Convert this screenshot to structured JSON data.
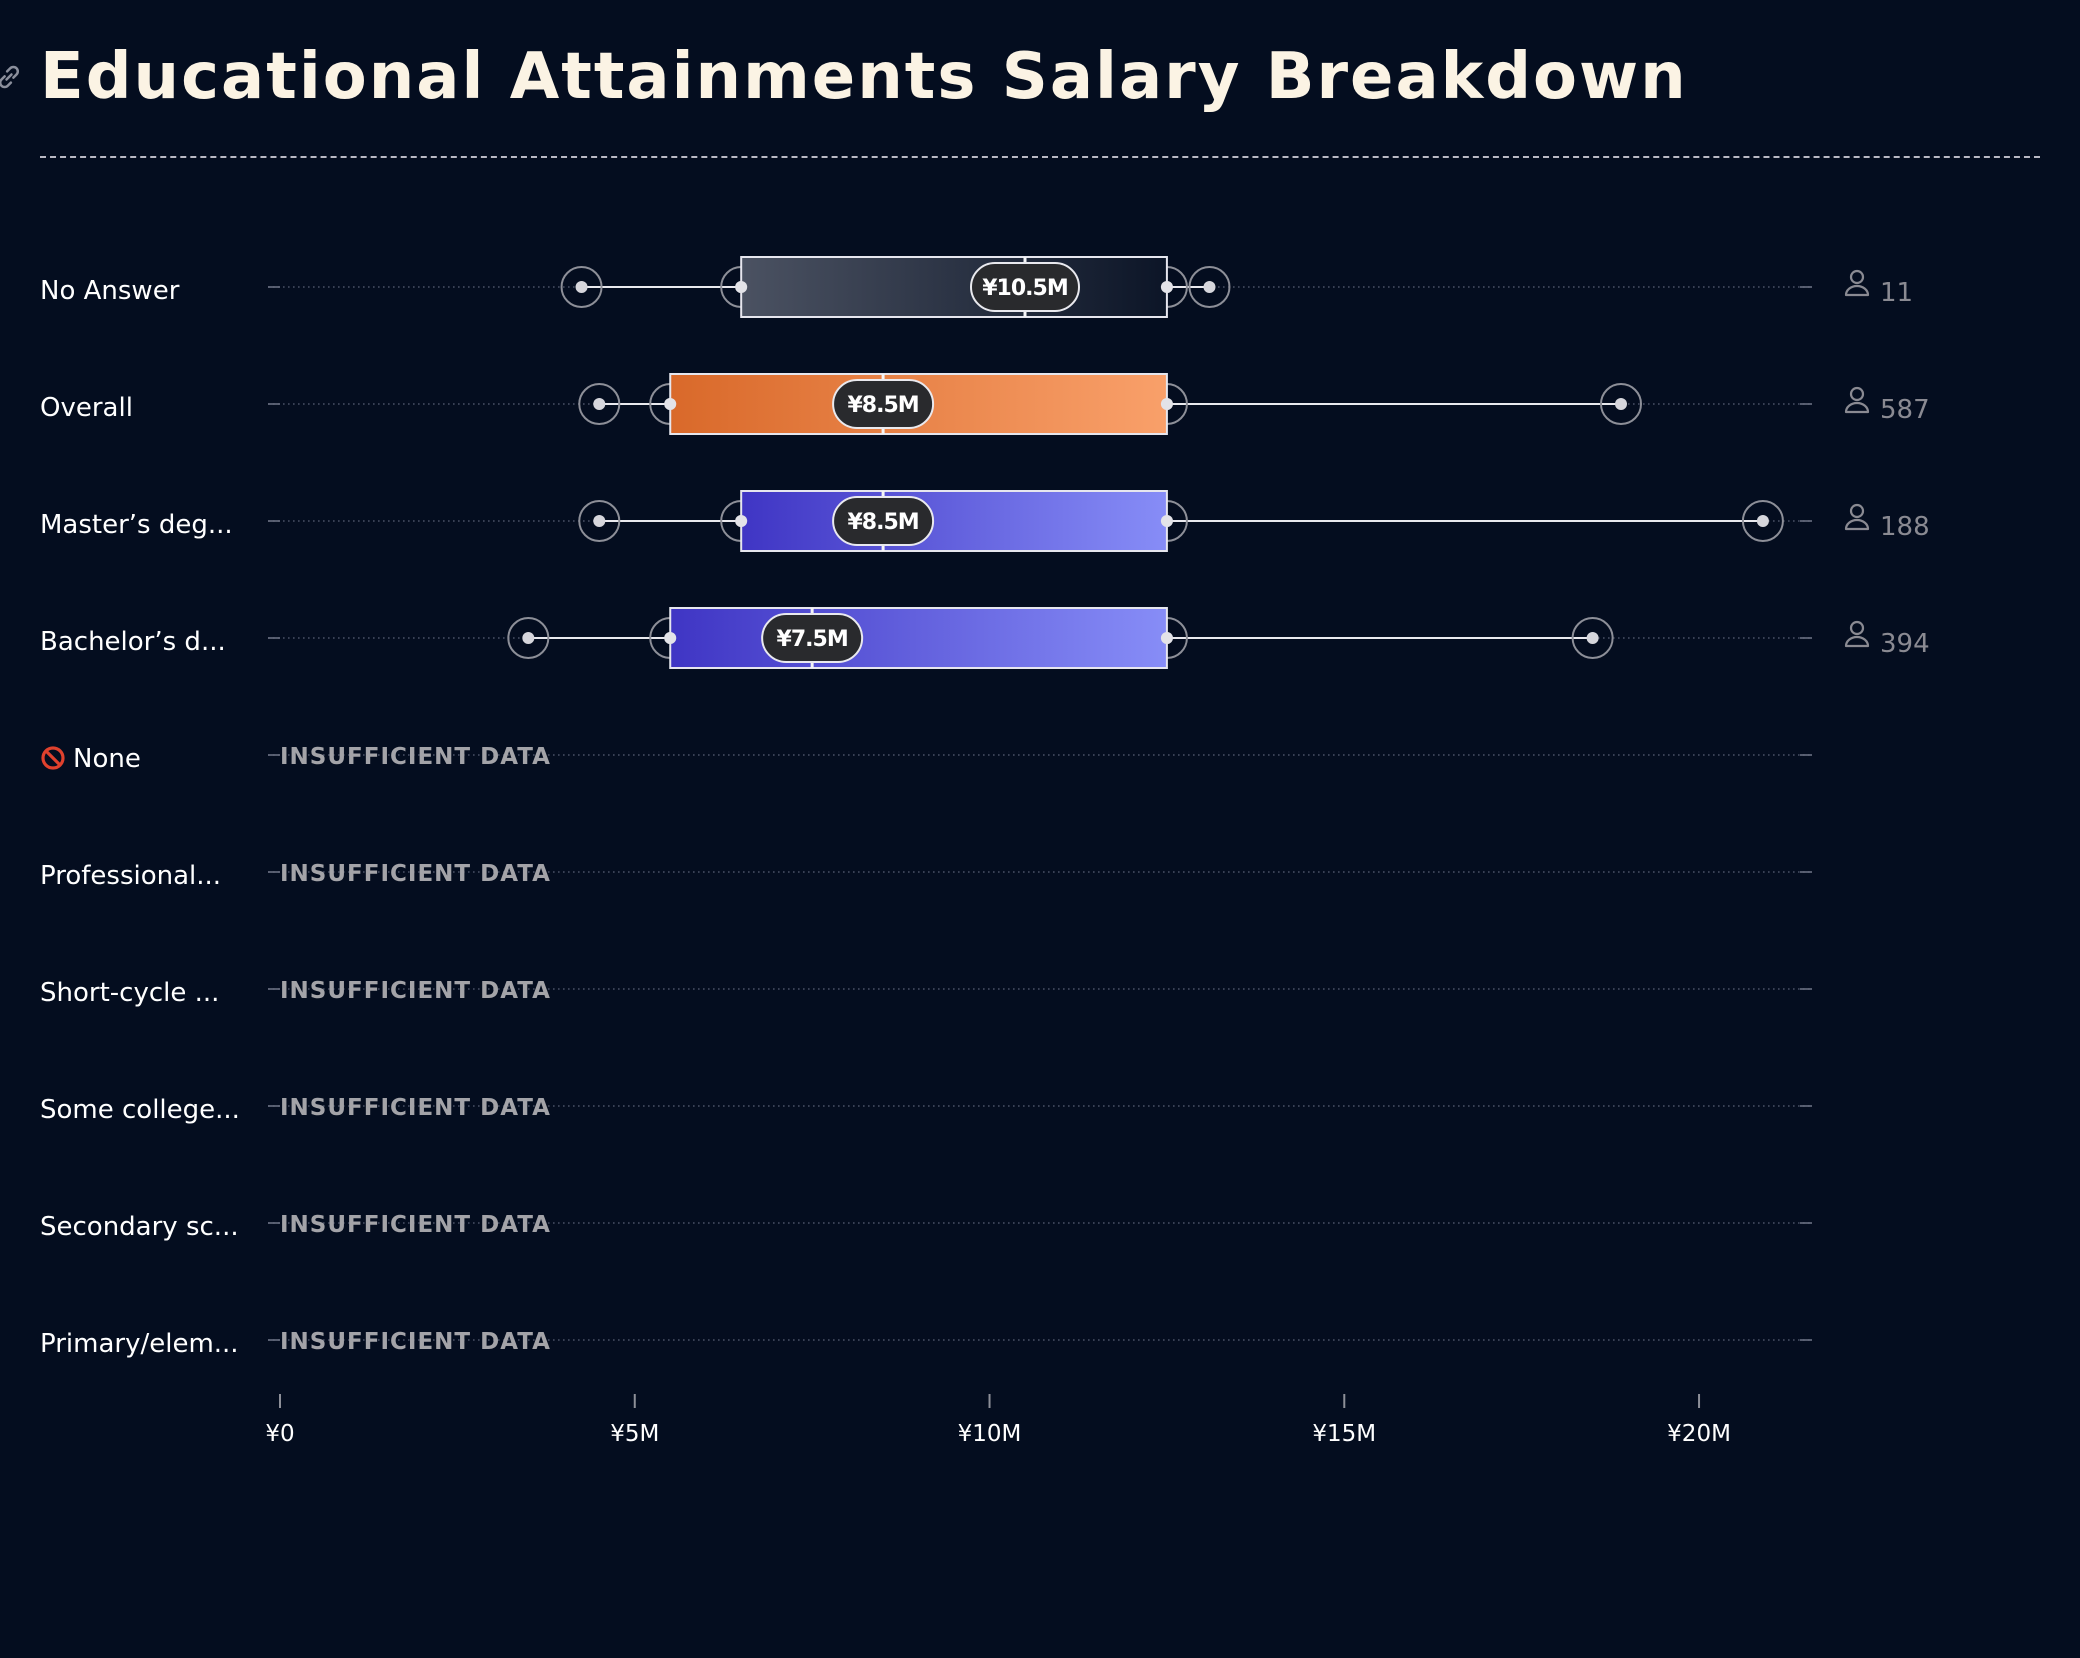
{
  "title": "Educational Attainments Salary Breakdown",
  "icons": {
    "title_link": "link-icon",
    "respondents": "person-icon",
    "no_formal": "prohibited-icon"
  },
  "colors": {
    "background": "#040d1f",
    "title": "#fbf3e4",
    "overall_start": "#d9692a",
    "overall_end": "#f9a06a",
    "degree_start": "#3f35c4",
    "degree_end": "#878df7",
    "no_answer_start": "#4b5262",
    "no_answer_end": "#0c1527"
  },
  "chart_data": {
    "type": "boxplot",
    "orientation": "horizontal",
    "currency": "¥",
    "x_unit": "JPY",
    "xlim": [
      0,
      21000000
    ],
    "x_ticks": [
      0,
      5000000,
      10000000,
      15000000,
      20000000
    ],
    "x_tick_labels": [
      "¥0",
      "¥5M",
      "¥10M",
      "¥15M",
      "¥20M"
    ],
    "insufficient_label": "INSUFFICIENT DATA",
    "rows": [
      {
        "label": "No Answer",
        "style": "no_answer",
        "count": "11",
        "min": 4250000,
        "p10": 6500000,
        "q1": 6500000,
        "median": 10500000,
        "median_label": "¥10.5M",
        "q3": 12500000,
        "p90": 12500000,
        "max": 13100000
      },
      {
        "label": "Overall",
        "style": "overall",
        "count": "587",
        "min": 4500000,
        "p10": 5500000,
        "q1": 5500000,
        "median": 8500000,
        "median_label": "¥8.5M",
        "q3": 12500000,
        "p90": 12500000,
        "max": 18900000
      },
      {
        "label": "Master’s deg...",
        "style": "degree",
        "count": "188",
        "min": 4500000,
        "p10": 6500000,
        "q1": 6500000,
        "median": 8500000,
        "median_label": "¥8.5M",
        "q3": 12500000,
        "p90": 12500000,
        "max": 20900000
      },
      {
        "label": "Bachelor’s d...",
        "style": "degree",
        "count": "394",
        "min": 3500000,
        "p10": 5500000,
        "q1": 5500000,
        "median": 7500000,
        "median_label": "¥7.5M",
        "q3": 12500000,
        "p90": 12500000,
        "max": 18500000
      },
      {
        "label": "None",
        "prefix_icon": "prohibited-icon",
        "insufficient": true
      },
      {
        "label": "Professional...",
        "insufficient": true
      },
      {
        "label": "Short-cycle ...",
        "insufficient": true
      },
      {
        "label": "Some college...",
        "insufficient": true
      },
      {
        "label": "Secondary sc...",
        "insufficient": true
      },
      {
        "label": "Primary/elem...",
        "insufficient": true
      }
    ]
  }
}
